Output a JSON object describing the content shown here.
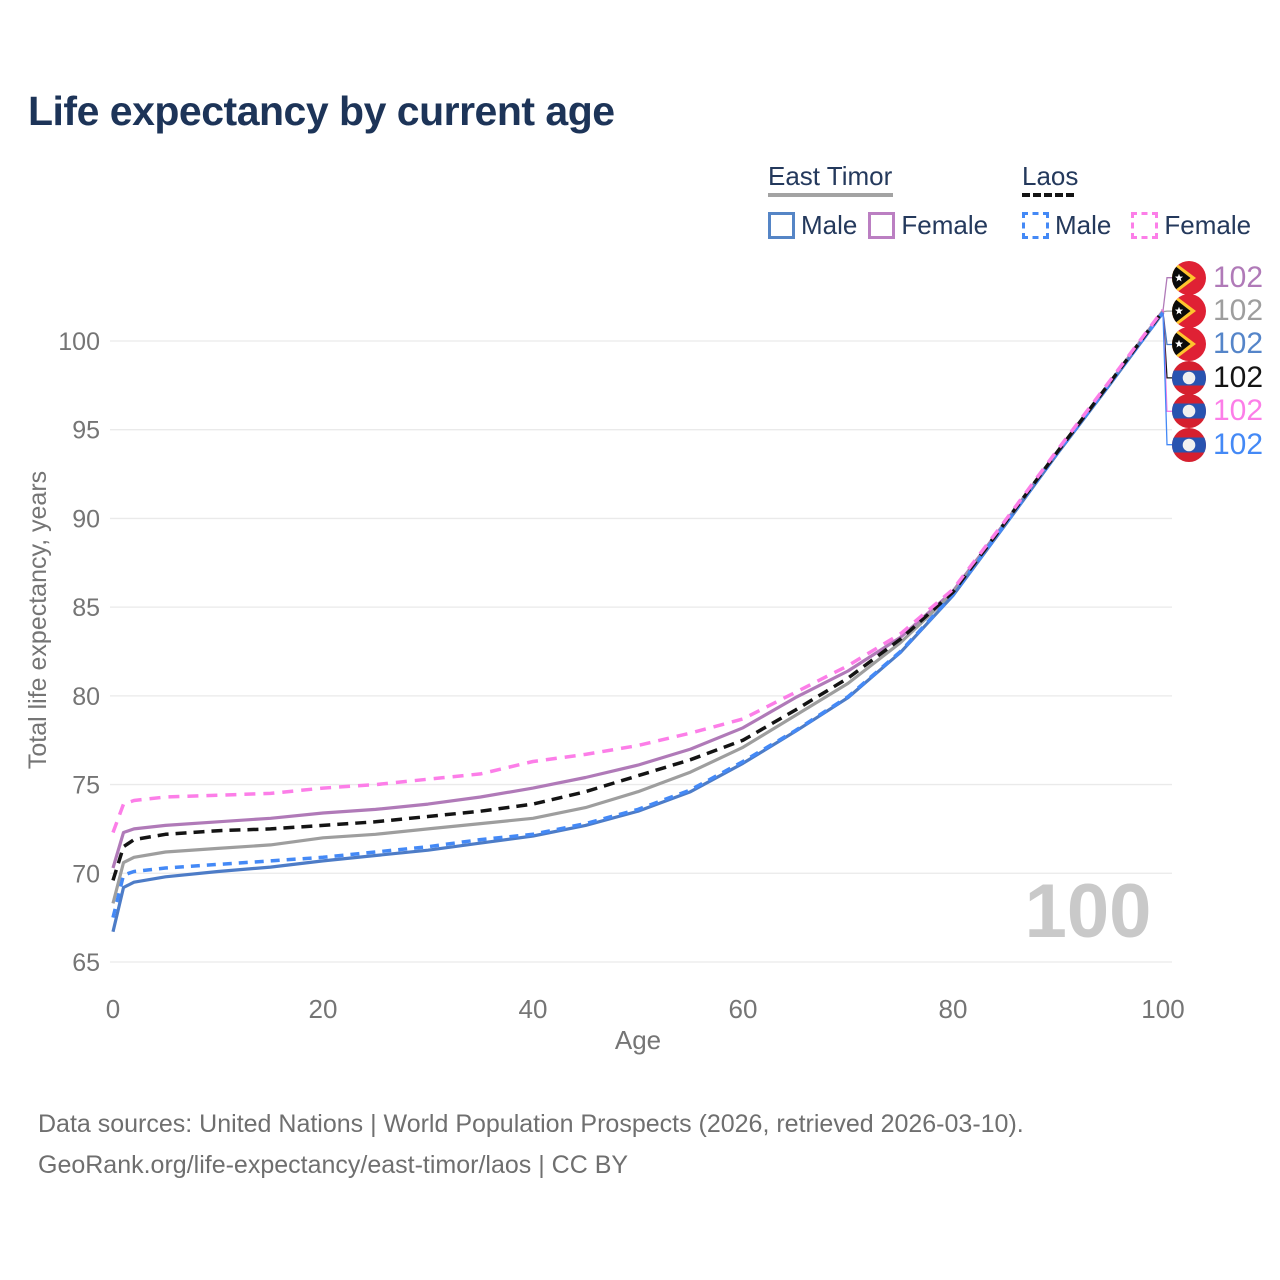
{
  "title": "Life expectancy by current age",
  "legend": {
    "groups": [
      {
        "name": "East Timor",
        "line_style": "solid",
        "underline_color": "#a3a3a3",
        "items": [
          {
            "label": "Male",
            "color": "#5585c6",
            "dashed": false
          },
          {
            "label": "Female",
            "color": "#bb7fc2",
            "dashed": false
          }
        ]
      },
      {
        "name": "Laos",
        "line_style": "dashed",
        "underline_color": "#141414",
        "items": [
          {
            "label": "Male",
            "color": "#4489f6",
            "dashed": true
          },
          {
            "label": "Female",
            "color": "#fc7ee8",
            "dashed": true
          }
        ]
      }
    ]
  },
  "watermark": "100",
  "chart_data": {
    "type": "line",
    "title": "Life expectancy by current age",
    "xlabel": "Age",
    "ylabel": "Total life expectancy, years",
    "x_ticks": [
      0,
      20,
      40,
      60,
      80,
      100
    ],
    "y_ticks": [
      65,
      70,
      75,
      80,
      85,
      90,
      95,
      100
    ],
    "xlim": [
      0,
      100
    ],
    "ylim": [
      65,
      102.5
    ],
    "grid": "horizontal",
    "legend_position": "top-right",
    "x": [
      0,
      1,
      2,
      5,
      10,
      15,
      20,
      25,
      30,
      35,
      40,
      45,
      50,
      55,
      60,
      65,
      70,
      75,
      80,
      85,
      90,
      95,
      100
    ],
    "series": [
      {
        "name": "East Timor Female",
        "country": "East Timor",
        "sex": "Female",
        "color": "#b07ab8",
        "dash": "solid",
        "values": [
          70.3,
          72.3,
          72.5,
          72.7,
          72.9,
          73.1,
          73.4,
          73.6,
          73.9,
          74.3,
          74.8,
          75.4,
          76.1,
          77.0,
          78.2,
          79.9,
          81.4,
          83.3,
          85.9,
          89.8,
          93.8,
          97.7,
          101.7
        ]
      },
      {
        "name": "East Timor Total",
        "country": "East Timor",
        "sex": "Total",
        "color": "#9e9e9e",
        "dash": "solid",
        "values": [
          68.3,
          70.6,
          70.9,
          71.2,
          71.4,
          71.6,
          72.0,
          72.2,
          72.5,
          72.8,
          73.1,
          73.7,
          74.6,
          75.7,
          77.1,
          78.9,
          80.7,
          83.0,
          85.8,
          89.75,
          93.75,
          97.65,
          101.65
        ]
      },
      {
        "name": "East Timor Male",
        "country": "East Timor",
        "sex": "Male",
        "color": "#4d7cc7",
        "dash": "solid",
        "values": [
          66.7,
          69.2,
          69.5,
          69.8,
          70.1,
          70.35,
          70.7,
          71.0,
          71.3,
          71.7,
          72.1,
          72.7,
          73.5,
          74.6,
          76.2,
          78.0,
          79.9,
          82.45,
          85.65,
          89.65,
          93.7,
          97.6,
          101.6
        ]
      },
      {
        "name": "Laos Male",
        "country": "Laos",
        "sex": "Male",
        "color": "#4489f6",
        "dash": "dashed",
        "values": [
          67.5,
          69.9,
          70.1,
          70.3,
          70.5,
          70.7,
          70.9,
          71.2,
          71.5,
          71.9,
          72.2,
          72.8,
          73.6,
          74.7,
          76.3,
          78.05,
          79.95,
          82.5,
          85.7,
          89.7,
          93.75,
          97.65,
          101.6
        ]
      },
      {
        "name": "Laos Total",
        "country": "Laos",
        "sex": "Total",
        "color": "#141414",
        "dash": "dashed",
        "values": [
          69.6,
          71.5,
          71.9,
          72.2,
          72.4,
          72.5,
          72.7,
          72.9,
          73.2,
          73.5,
          73.9,
          74.6,
          75.5,
          76.4,
          77.5,
          79.2,
          81.0,
          83.2,
          85.85,
          89.8,
          93.8,
          97.7,
          101.7
        ]
      },
      {
        "name": "Laos Female",
        "country": "Laos",
        "sex": "Female",
        "color": "#fc7ee8",
        "dash": "dashed",
        "values": [
          72.3,
          73.9,
          74.1,
          74.3,
          74.4,
          74.5,
          74.8,
          75.0,
          75.3,
          75.6,
          76.3,
          76.7,
          77.2,
          77.9,
          78.7,
          80.2,
          81.7,
          83.5,
          86.0,
          89.9,
          93.9,
          97.8,
          101.75
        ]
      }
    ],
    "end_labels": [
      {
        "value": "102",
        "flag": "east-timor",
        "series": 0,
        "text_color": "#b07ab8"
      },
      {
        "value": "102",
        "flag": "east-timor",
        "series": 1,
        "text_color": "#9e9e9e"
      },
      {
        "value": "102",
        "flag": "east-timor",
        "series": 2,
        "text_color": "#5585c9"
      },
      {
        "value": "102",
        "flag": "laos",
        "series": 4,
        "text_color": "#141414"
      },
      {
        "value": "102",
        "flag": "laos",
        "series": 5,
        "text_color": "#fc7ee8"
      },
      {
        "value": "102",
        "flag": "laos",
        "series": 3,
        "text_color": "#4489f6"
      }
    ]
  },
  "age_counter": "100",
  "footer": {
    "line1": "Data sources: United Nations | World Population Prospects (2026, retrieved 2026-03-10).",
    "line2": "GeoRank.org/life-expectancy/east-timor/laos | CC BY"
  },
  "colors": {
    "title": "#1d3458",
    "tick_text": "#757575",
    "gridline": "#eaeaea",
    "watermark": "#c9c9c9",
    "footer_text": "#6f6f6f"
  }
}
